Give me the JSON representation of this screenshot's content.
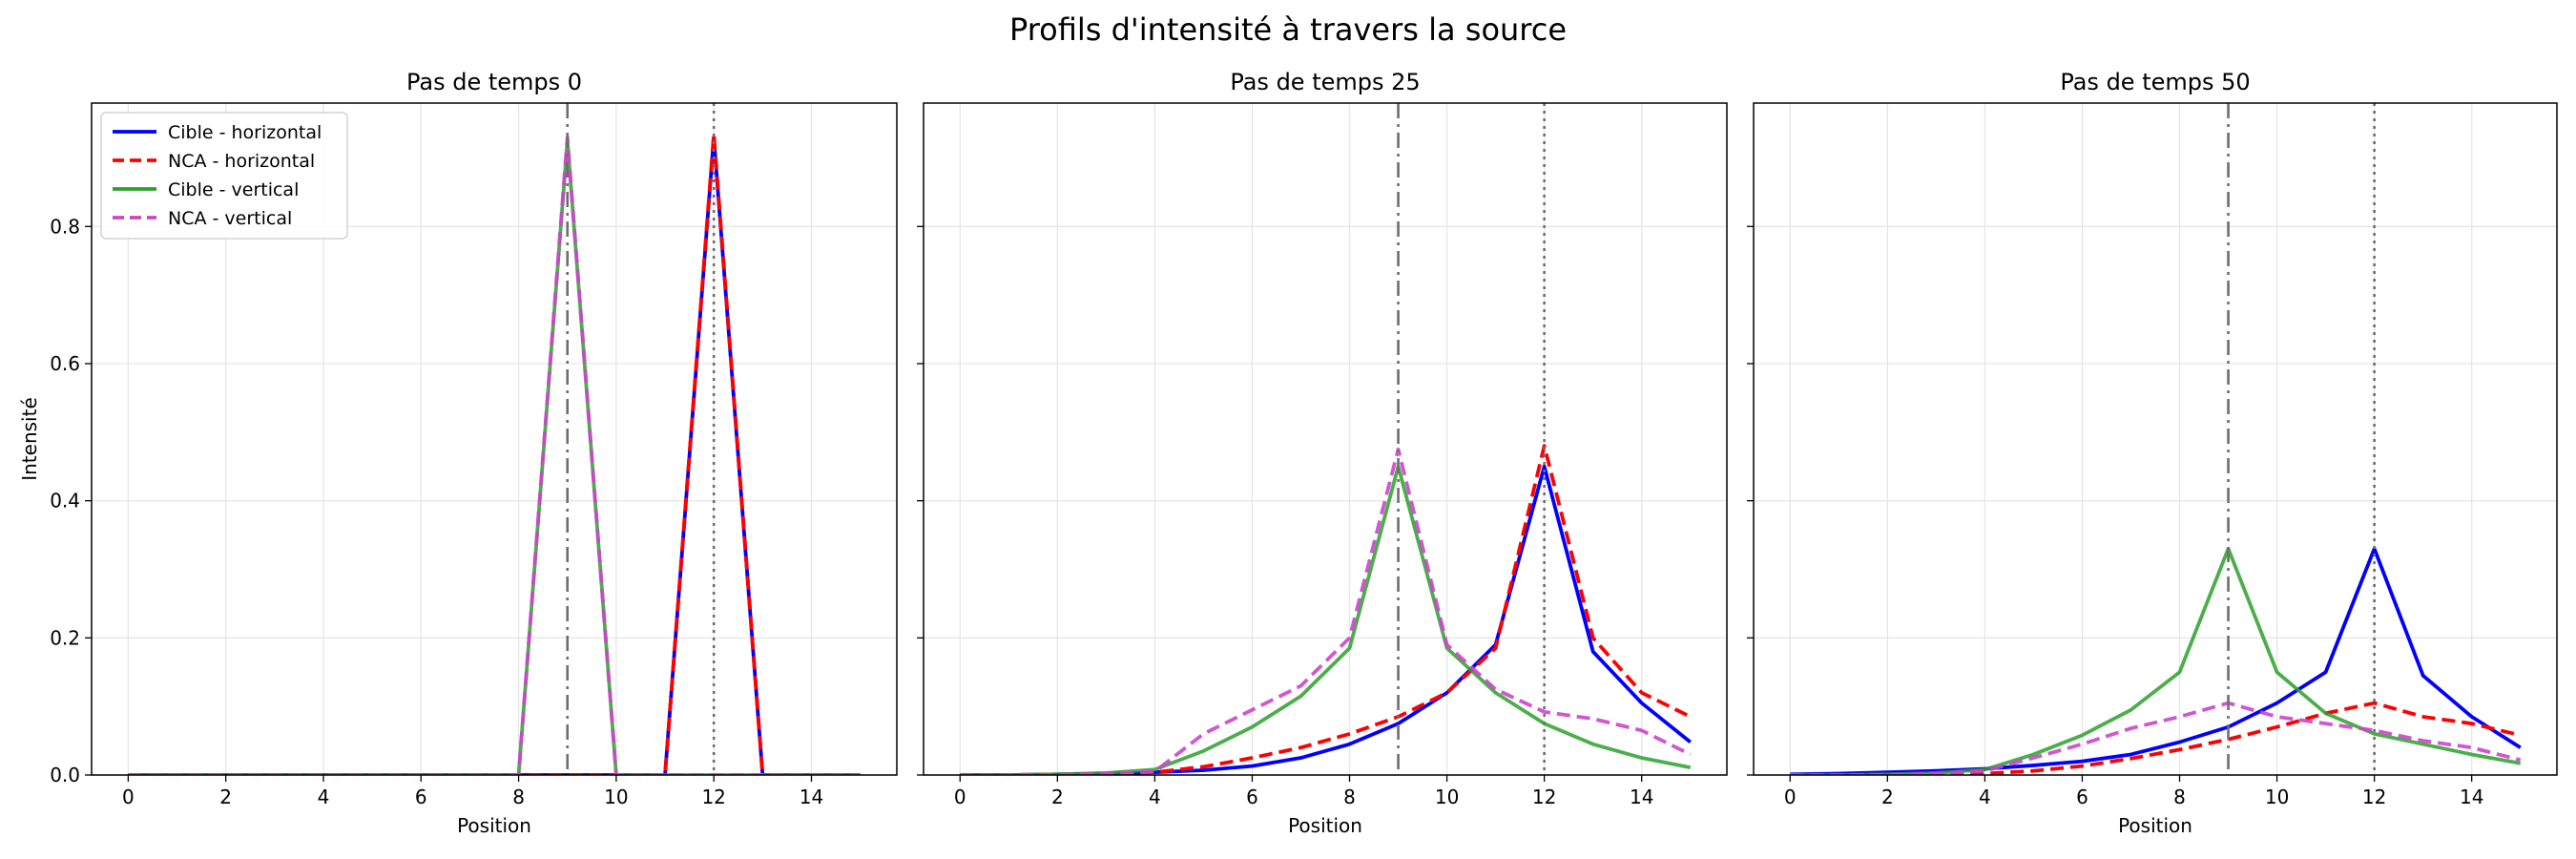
{
  "figure_title": "Profils d'intensité à travers la source",
  "chart_data": [
    {
      "type": "line",
      "title": "Pas de temps 0",
      "xlabel": "Position",
      "ylabel": "Intensité",
      "xlim": [
        -0.75,
        15.75
      ],
      "ylim": [
        0,
        0.98
      ],
      "xticks": [
        0,
        2,
        4,
        6,
        8,
        10,
        12,
        14
      ],
      "yticks": [
        0.0,
        0.2,
        0.4,
        0.6,
        0.8
      ],
      "grid": true,
      "legend": "top-left",
      "vlines": [
        {
          "x": 9,
          "style": "dashdot"
        },
        {
          "x": 12,
          "style": "dotted"
        }
      ],
      "x": [
        0,
        1,
        2,
        3,
        4,
        5,
        6,
        7,
        8,
        9,
        10,
        11,
        12,
        13,
        14,
        15
      ],
      "series": [
        {
          "name": "Cible - horizontal",
          "color": "#0000ff",
          "dash": "solid",
          "values": [
            0,
            0,
            0,
            0,
            0,
            0,
            0,
            0,
            0,
            0,
            0,
            0,
            0.93,
            0,
            0,
            0
          ]
        },
        {
          "name": "NCA - horizontal",
          "color": "#ff0000",
          "dash": "dashed",
          "values": [
            0,
            0,
            0,
            0,
            0,
            0,
            0,
            0,
            0,
            0,
            0,
            0,
            0.935,
            0,
            0,
            0
          ]
        },
        {
          "name": "Cible - vertical",
          "color": "#2ca02c",
          "dash": "solid",
          "values": [
            0,
            0,
            0,
            0,
            0,
            0,
            0,
            0,
            0,
            0.925,
            0,
            0,
            0,
            0,
            0,
            0
          ]
        },
        {
          "name": "NCA - vertical",
          "color": "#cc44cc",
          "dash": "dashed",
          "values": [
            0,
            0,
            0,
            0,
            0,
            0,
            0,
            0,
            0,
            0.93,
            0,
            0,
            0,
            0,
            0,
            0
          ]
        }
      ]
    },
    {
      "type": "line",
      "title": "Pas de temps 25",
      "xlabel": "Position",
      "ylabel": "",
      "xlim": [
        -0.75,
        15.75
      ],
      "ylim": [
        0,
        0.98
      ],
      "xticks": [
        0,
        2,
        4,
        6,
        8,
        10,
        12,
        14
      ],
      "yticks": [
        0.0,
        0.2,
        0.4,
        0.6,
        0.8
      ],
      "grid": true,
      "vlines": [
        {
          "x": 9,
          "style": "dashdot"
        },
        {
          "x": 12,
          "style": "dotted"
        }
      ],
      "x": [
        0,
        1,
        2,
        3,
        4,
        5,
        6,
        7,
        8,
        9,
        10,
        11,
        12,
        13,
        14,
        15
      ],
      "series": [
        {
          "name": "Cible - horizontal",
          "color": "#0000ff",
          "dash": "solid",
          "values": [
            0,
            0,
            0.001,
            0.002,
            0.004,
            0.007,
            0.013,
            0.025,
            0.045,
            0.075,
            0.12,
            0.19,
            0.45,
            0.18,
            0.105,
            0.048
          ]
        },
        {
          "name": "NCA - horizontal",
          "color": "#ff0000",
          "dash": "dashed",
          "values": [
            0,
            0,
            0.001,
            0.002,
            0.004,
            0.012,
            0.025,
            0.04,
            0.06,
            0.085,
            0.12,
            0.185,
            0.48,
            0.2,
            0.12,
            0.085
          ]
        },
        {
          "name": "Cible - vertical",
          "color": "#2ca02c",
          "dash": "solid",
          "values": [
            0,
            0,
            0.001,
            0.003,
            0.008,
            0.035,
            0.07,
            0.115,
            0.185,
            0.45,
            0.185,
            0.12,
            0.075,
            0.045,
            0.025,
            0.011
          ]
        },
        {
          "name": "NCA - vertical",
          "color": "#cc44cc",
          "dash": "dashed",
          "values": [
            0,
            0,
            0,
            0.002,
            0.005,
            0.06,
            0.095,
            0.13,
            0.2,
            0.475,
            0.19,
            0.125,
            0.092,
            0.082,
            0.065,
            0.03
          ]
        }
      ]
    },
    {
      "type": "line",
      "title": "Pas de temps 50",
      "xlabel": "Position",
      "ylabel": "",
      "xlim": [
        -0.75,
        15.75
      ],
      "ylim": [
        0,
        0.98
      ],
      "xticks": [
        0,
        2,
        4,
        6,
        8,
        10,
        12,
        14
      ],
      "yticks": [
        0.0,
        0.2,
        0.4,
        0.6,
        0.8
      ],
      "grid": true,
      "vlines": [
        {
          "x": 9,
          "style": "dashdot"
        },
        {
          "x": 12,
          "style": "dotted"
        }
      ],
      "x": [
        0,
        1,
        2,
        3,
        4,
        5,
        6,
        7,
        8,
        9,
        10,
        11,
        12,
        13,
        14,
        15
      ],
      "series": [
        {
          "name": "Cible - horizontal",
          "color": "#0000ff",
          "dash": "solid",
          "values": [
            0.001,
            0.002,
            0.004,
            0.006,
            0.009,
            0.014,
            0.02,
            0.03,
            0.048,
            0.07,
            0.105,
            0.15,
            0.33,
            0.145,
            0.085,
            0.04
          ]
        },
        {
          "name": "NCA - horizontal",
          "color": "#ff0000",
          "dash": "dashed",
          "values": [
            0,
            0,
            0,
            0.001,
            0.002,
            0.006,
            0.013,
            0.024,
            0.037,
            0.052,
            0.07,
            0.09,
            0.105,
            0.085,
            0.075,
            0.058
          ]
        },
        {
          "name": "Cible - vertical",
          "color": "#2ca02c",
          "dash": "solid",
          "values": [
            0,
            0,
            0.001,
            0.003,
            0.008,
            0.03,
            0.058,
            0.095,
            0.15,
            0.33,
            0.15,
            0.09,
            0.06,
            0.045,
            0.03,
            0.017
          ]
        },
        {
          "name": "NCA - vertical",
          "color": "#cc44cc",
          "dash": "dashed",
          "values": [
            0,
            0,
            0,
            0.002,
            0.006,
            0.025,
            0.045,
            0.068,
            0.085,
            0.105,
            0.085,
            0.075,
            0.065,
            0.05,
            0.04,
            0.022
          ]
        }
      ]
    }
  ]
}
